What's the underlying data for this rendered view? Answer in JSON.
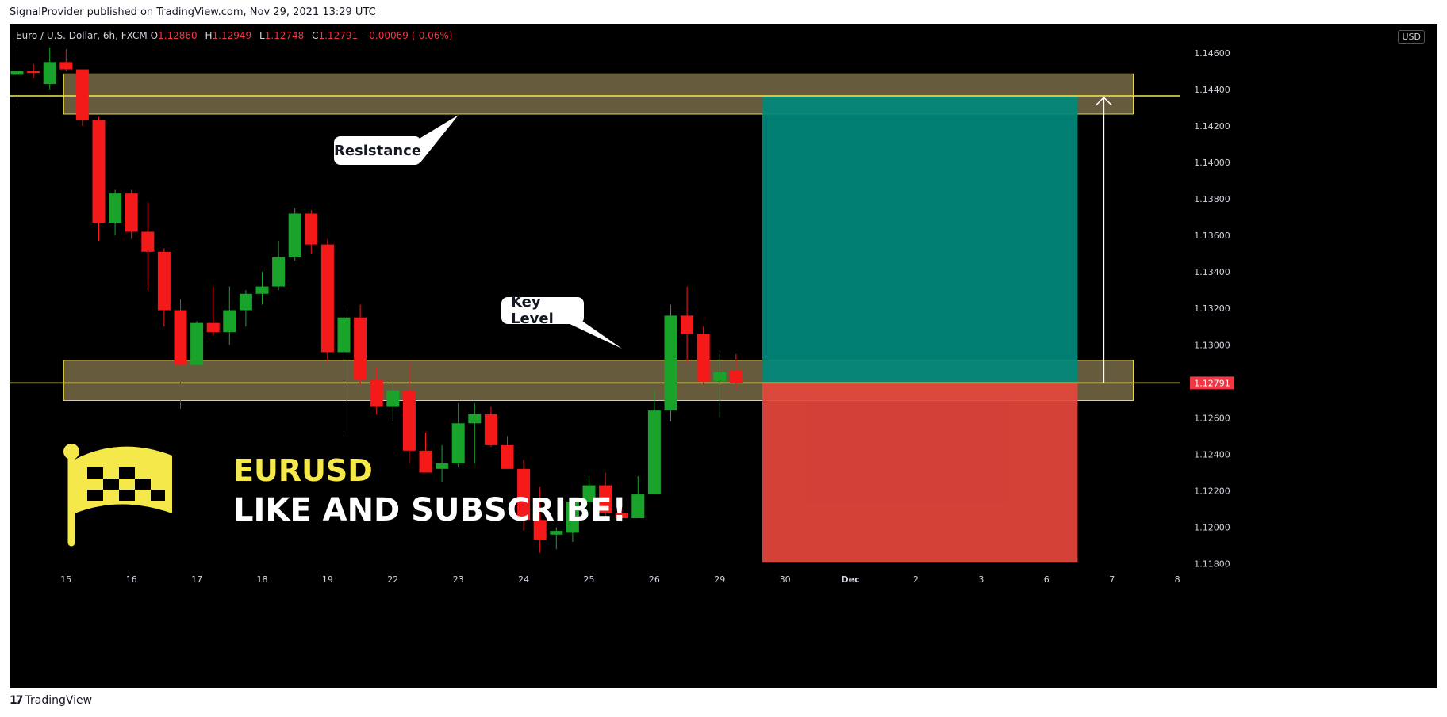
{
  "header": {
    "published_text": "SignalProvider published on TradingView.com, Nov 29, 2021 13:29 UTC"
  },
  "legend": {
    "symbol": "Euro / U.S. Dollar, 6h, FXCM",
    "open_label": "O",
    "open": "1.12860",
    "high_label": "H",
    "high": "1.12949",
    "low_label": "L",
    "low": "1.12748",
    "close_label": "C",
    "close": "1.12791",
    "change": "-0.00069 (-0.06%)"
  },
  "currency_badge": "USD",
  "current_price_label": "1.12791",
  "annotations": {
    "resistance": "Resistance",
    "key_level": "Key Level",
    "ticker": "EURUSD",
    "cta": "LIKE AND SUBSCRIBE!"
  },
  "footer": {
    "logo": "17",
    "brand": "TradingView"
  },
  "colors": {
    "bull": "#1aa32a",
    "bear": "#f41a1a",
    "zone_fill": "#6b6140",
    "zone_border": "#e6d84d",
    "level_line": "#f5e84a",
    "target": "#00897b",
    "stop": "#e5463c",
    "flag": "#f5e84a",
    "price_badge": "#f23645"
  },
  "chart_data": {
    "type": "candlestick",
    "symbol": "EURUSD",
    "timeframe": "6h",
    "ylim": [
      1.1172,
      1.1476
    ],
    "y_ticks": [
      "1.14600",
      "1.14400",
      "1.14200",
      "1.14000",
      "1.13800",
      "1.13600",
      "1.13400",
      "1.13200",
      "1.13000",
      "1.12600",
      "1.12400",
      "1.12200",
      "1.12000",
      "1.11800"
    ],
    "x_ticks": [
      {
        "label": "15",
        "i": 3
      },
      {
        "label": "16",
        "i": 7
      },
      {
        "label": "17",
        "i": 11
      },
      {
        "label": "18",
        "i": 15
      },
      {
        "label": "19",
        "i": 19
      },
      {
        "label": "22",
        "i": 23
      },
      {
        "label": "23",
        "i": 27
      },
      {
        "label": "24",
        "i": 31
      },
      {
        "label": "25",
        "i": 35
      },
      {
        "label": "26",
        "i": 39
      },
      {
        "label": "29",
        "i": 43
      },
      {
        "label": "30",
        "i": 47
      },
      {
        "label": "Dec",
        "i": 51
      },
      {
        "label": "2",
        "i": 55
      },
      {
        "label": "3",
        "i": 59
      },
      {
        "label": "6",
        "i": 63
      },
      {
        "label": "7",
        "i": 67
      },
      {
        "label": "8",
        "i": 71
      }
    ],
    "candles": [
      {
        "o": 1.1448,
        "h": 1.1462,
        "l": 1.1432,
        "c": 1.145
      },
      {
        "o": 1.145,
        "h": 1.1454,
        "l": 1.1446,
        "c": 1.1449
      },
      {
        "o": 1.1443,
        "h": 1.1463,
        "l": 1.144,
        "c": 1.1455
      },
      {
        "o": 1.1455,
        "h": 1.1462,
        "l": 1.145,
        "c": 1.1451
      },
      {
        "o": 1.1451,
        "h": 1.1451,
        "l": 1.142,
        "c": 1.1423
      },
      {
        "o": 1.1423,
        "h": 1.1425,
        "l": 1.1357,
        "c": 1.1367
      },
      {
        "o": 1.1367,
        "h": 1.1385,
        "l": 1.136,
        "c": 1.1383
      },
      {
        "o": 1.1383,
        "h": 1.1385,
        "l": 1.1358,
        "c": 1.1362
      },
      {
        "o": 1.1362,
        "h": 1.1378,
        "l": 1.133,
        "c": 1.1351
      },
      {
        "o": 1.1351,
        "h": 1.1353,
        "l": 1.131,
        "c": 1.1319
      },
      {
        "o": 1.1319,
        "h": 1.1325,
        "l": 1.1265,
        "c": 1.1289
      },
      {
        "o": 1.1289,
        "h": 1.1313,
        "l": 1.1289,
        "c": 1.1312
      },
      {
        "o": 1.1312,
        "h": 1.1332,
        "l": 1.1305,
        "c": 1.1307
      },
      {
        "o": 1.1307,
        "h": 1.1332,
        "l": 1.13,
        "c": 1.1319
      },
      {
        "o": 1.1319,
        "h": 1.133,
        "l": 1.131,
        "c": 1.1328
      },
      {
        "o": 1.1328,
        "h": 1.134,
        "l": 1.1322,
        "c": 1.1332
      },
      {
        "o": 1.1332,
        "h": 1.1357,
        "l": 1.133,
        "c": 1.1348
      },
      {
        "o": 1.1348,
        "h": 1.1375,
        "l": 1.1346,
        "c": 1.1372
      },
      {
        "o": 1.1372,
        "h": 1.1374,
        "l": 1.135,
        "c": 1.1355
      },
      {
        "o": 1.1355,
        "h": 1.1358,
        "l": 1.129,
        "c": 1.1296
      },
      {
        "o": 1.1296,
        "h": 1.132,
        "l": 1.125,
        "c": 1.1315
      },
      {
        "o": 1.1315,
        "h": 1.1322,
        "l": 1.1278,
        "c": 1.1281
      },
      {
        "o": 1.1281,
        "h": 1.1288,
        "l": 1.1262,
        "c": 1.1266
      },
      {
        "o": 1.1266,
        "h": 1.128,
        "l": 1.1258,
        "c": 1.1275
      },
      {
        "o": 1.1275,
        "h": 1.129,
        "l": 1.1235,
        "c": 1.1242
      },
      {
        "o": 1.1242,
        "h": 1.1252,
        "l": 1.123,
        "c": 1.123
      },
      {
        "o": 1.1232,
        "h": 1.1245,
        "l": 1.1225,
        "c": 1.1235
      },
      {
        "o": 1.1235,
        "h": 1.1268,
        "l": 1.1233,
        "c": 1.1257
      },
      {
        "o": 1.1257,
        "h": 1.1268,
        "l": 1.1235,
        "c": 1.1262
      },
      {
        "o": 1.1262,
        "h": 1.1266,
        "l": 1.1244,
        "c": 1.1245
      },
      {
        "o": 1.1245,
        "h": 1.125,
        "l": 1.1232,
        "c": 1.1232
      },
      {
        "o": 1.1232,
        "h": 1.1237,
        "l": 1.1198,
        "c": 1.1204
      },
      {
        "o": 1.1204,
        "h": 1.1222,
        "l": 1.1186,
        "c": 1.1193
      },
      {
        "o": 1.1196,
        "h": 1.12,
        "l": 1.1188,
        "c": 1.1198
      },
      {
        "o": 1.1197,
        "h": 1.1216,
        "l": 1.1192,
        "c": 1.1214
      },
      {
        "o": 1.1214,
        "h": 1.1228,
        "l": 1.1209,
        "c": 1.1223
      },
      {
        "o": 1.1223,
        "h": 1.123,
        "l": 1.1206,
        "c": 1.1208
      },
      {
        "o": 1.1208,
        "h": 1.1213,
        "l": 1.1203,
        "c": 1.1205
      },
      {
        "o": 1.1205,
        "h": 1.1228,
        "l": 1.1205,
        "c": 1.1218
      },
      {
        "o": 1.1218,
        "h": 1.1275,
        "l": 1.1218,
        "c": 1.1264
      },
      {
        "o": 1.1264,
        "h": 1.1322,
        "l": 1.1258,
        "c": 1.1316
      },
      {
        "o": 1.1316,
        "h": 1.1332,
        "l": 1.129,
        "c": 1.1306
      },
      {
        "o": 1.1306,
        "h": 1.131,
        "l": 1.1278,
        "c": 1.128
      },
      {
        "o": 1.128,
        "h": 1.1295,
        "l": 1.126,
        "c": 1.1285
      },
      {
        "o": 1.1286,
        "h": 1.1295,
        "l": 1.1275,
        "c": 1.1279
      }
    ],
    "zones": [
      {
        "name": "resistance",
        "top": 1.14485,
        "bottom": 1.14265
      },
      {
        "name": "key_level",
        "top": 1.12915,
        "bottom": 1.12695
      }
    ],
    "levels": [
      1.14365,
      1.12791
    ],
    "position": {
      "entry": 1.12791,
      "target": 1.14365,
      "stop": 1.1181,
      "start_i": 45.6,
      "end_i": 64.9
    }
  }
}
